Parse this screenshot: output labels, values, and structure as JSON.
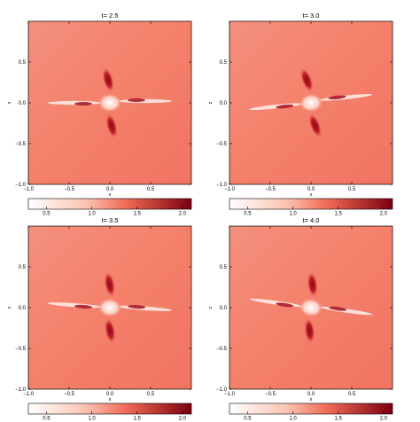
{
  "chart_data": [
    {
      "type": "heatmap",
      "title": "t= 2.5",
      "xlabel": "x",
      "ylabel": "z",
      "xlim": [
        -1.0,
        1.0
      ],
      "ylim": [
        -1.0,
        1.0
      ],
      "xticks": [
        "−1.0",
        "−0.5",
        "0.0",
        "0.5"
      ],
      "yticks": [
        "−1.0",
        "−0.5",
        "0.0",
        "0.5"
      ],
      "colorbar": {
        "range": [
          0.3,
          2.1
        ],
        "ticks": [
          "0.5",
          "1.0",
          "1.5",
          "2.0"
        ]
      },
      "rotation": 0
    },
    {
      "type": "heatmap",
      "title": "t= 3.0",
      "xlabel": "x",
      "ylabel": "z",
      "xlim": [
        -1.0,
        1.0
      ],
      "ylim": [
        -1.0,
        1.0
      ],
      "xticks": [
        "−1.0",
        "−0.5",
        "0.0",
        "0.5"
      ],
      "yticks": [
        "−1.0",
        "−0.5",
        "0.0",
        "0.5"
      ],
      "colorbar": {
        "range": [
          0.3,
          2.1
        ],
        "ticks": [
          "0.5",
          "1.0",
          "1.5",
          "2.0"
        ]
      },
      "rotation": -6
    },
    {
      "type": "heatmap",
      "title": "t= 3.5",
      "xlabel": "x",
      "ylabel": "z",
      "xlim": [
        -1.0,
        1.0
      ],
      "ylim": [
        -1.0,
        1.0
      ],
      "xticks": [
        "−1.0",
        "−0.5",
        "0.0",
        "0.5"
      ],
      "yticks": [
        "−1.0",
        "−0.5",
        "0.0",
        "0.5"
      ],
      "colorbar": {
        "range": [
          0.3,
          2.1
        ],
        "ticks": [
          "0.5",
          "1.0",
          "1.5",
          "2.0"
        ]
      },
      "rotation": 4
    },
    {
      "type": "heatmap",
      "title": "t= 4.0",
      "xlabel": "x",
      "ylabel": "z",
      "xlim": [
        -1.0,
        1.0
      ],
      "ylim": [
        -1.0,
        1.0
      ],
      "xticks": [
        "−1.0",
        "−0.5",
        "0.0",
        "0.5"
      ],
      "yticks": [
        "−1.0",
        "−0.5",
        "0.0",
        "0.5"
      ],
      "colorbar": {
        "range": [
          0.3,
          2.1
        ],
        "ticks": [
          "0.5",
          "1.0",
          "1.5",
          "2.0"
        ]
      },
      "rotation": 8
    }
  ],
  "colors": {
    "background": "#f4806a",
    "low": "#ffffff",
    "mid": "#f06a55",
    "high": "#7a0010"
  }
}
